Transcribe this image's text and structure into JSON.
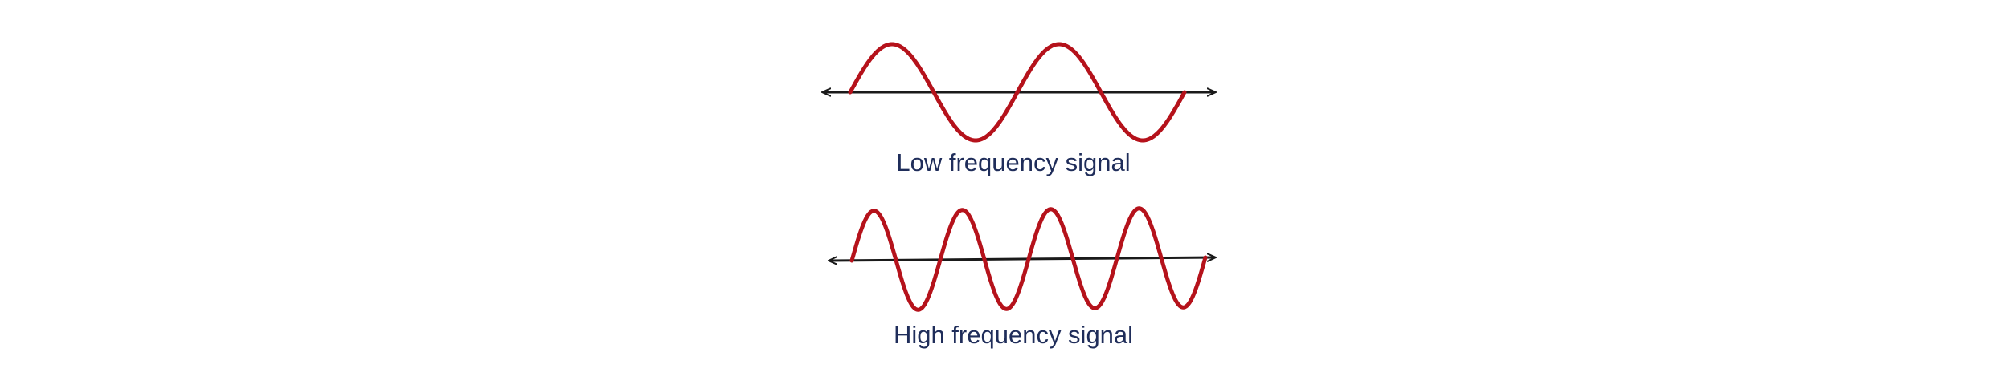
{
  "colors": {
    "wave": "#b5121b",
    "axis": "#1a1a1a",
    "caption": "#1f2d5a",
    "background": "#ffffff"
  },
  "panels": [
    {
      "id": "low",
      "caption": "Low frequency signal",
      "cycles": 2
    },
    {
      "id": "high",
      "caption": "High frequency signal",
      "cycles": 4
    }
  ]
}
